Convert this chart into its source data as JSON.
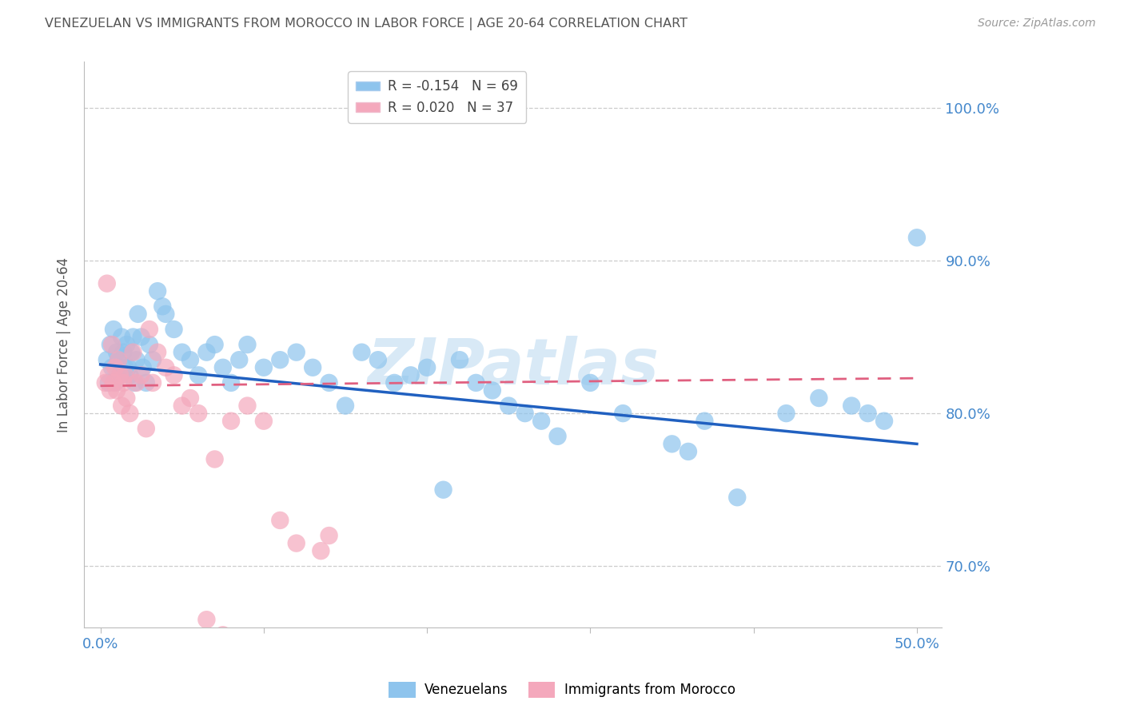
{
  "title": "VENEZUELAN VS IMMIGRANTS FROM MOROCCO IN LABOR FORCE | AGE 20-64 CORRELATION CHART",
  "source": "Source: ZipAtlas.com",
  "ylabel": "In Labor Force | Age 20-64",
  "xlim": [
    0.0,
    50.0
  ],
  "ylim": [
    66.0,
    103.0
  ],
  "blue_R": -0.154,
  "blue_N": 69,
  "pink_R": 0.02,
  "pink_N": 37,
  "blue_color": "#8ec4ed",
  "pink_color": "#f4a8bc",
  "blue_line_color": "#2060c0",
  "pink_line_color": "#e06080",
  "watermark": "ZIPatlas",
  "watermark_color": "#b8d8f0",
  "title_color": "#555555",
  "axis_color": "#4488cc",
  "legend_blue_label": "Venezuelans",
  "legend_pink_label": "Immigrants from Morocco",
  "blue_trend_x0": 0.0,
  "blue_trend_y0": 83.2,
  "blue_trend_x1": 50.0,
  "blue_trend_y1": 78.0,
  "pink_trend_x0": 0.0,
  "pink_trend_y0": 81.8,
  "pink_trend_x1": 50.0,
  "pink_trend_y1": 82.3,
  "venezuelan_x": [
    0.4,
    0.5,
    0.6,
    0.7,
    0.8,
    0.9,
    1.0,
    1.1,
    1.2,
    1.3,
    1.4,
    1.5,
    1.6,
    1.7,
    1.8,
    1.9,
    2.0,
    2.1,
    2.2,
    2.3,
    2.5,
    2.6,
    2.8,
    3.0,
    3.2,
    3.5,
    3.8,
    4.0,
    4.5,
    5.0,
    5.5,
    6.0,
    6.5,
    7.0,
    7.5,
    8.0,
    8.5,
    9.0,
    10.0,
    11.0,
    12.0,
    13.0,
    14.0,
    15.0,
    16.0,
    17.0,
    18.0,
    19.0,
    20.0,
    21.0,
    22.0,
    23.0,
    24.0,
    25.0,
    26.0,
    27.0,
    28.0,
    30.0,
    32.0,
    35.0,
    36.0,
    37.0,
    39.0,
    42.0,
    44.0,
    46.0,
    47.0,
    48.0,
    50.0
  ],
  "venezuelan_y": [
    83.5,
    82.0,
    84.5,
    83.0,
    85.5,
    82.0,
    84.0,
    83.5,
    82.5,
    85.0,
    84.0,
    83.0,
    84.5,
    83.0,
    82.5,
    84.0,
    85.0,
    82.0,
    83.5,
    86.5,
    85.0,
    83.0,
    82.0,
    84.5,
    83.5,
    88.0,
    87.0,
    86.5,
    85.5,
    84.0,
    83.5,
    82.5,
    84.0,
    84.5,
    83.0,
    82.0,
    83.5,
    84.5,
    83.0,
    83.5,
    84.0,
    83.0,
    82.0,
    80.5,
    84.0,
    83.5,
    82.0,
    82.5,
    83.0,
    75.0,
    83.5,
    82.0,
    81.5,
    80.5,
    80.0,
    79.5,
    78.5,
    82.0,
    80.0,
    78.0,
    77.5,
    79.5,
    74.5,
    80.0,
    81.0,
    80.5,
    80.0,
    79.5,
    91.5
  ],
  "morocco_x": [
    0.3,
    0.4,
    0.5,
    0.6,
    0.7,
    0.8,
    0.9,
    1.0,
    1.1,
    1.2,
    1.3,
    1.4,
    1.5,
    1.6,
    1.8,
    2.0,
    2.2,
    2.5,
    3.0,
    3.5,
    4.0,
    4.5,
    5.0,
    6.0,
    7.0,
    8.0,
    9.0,
    10.0,
    11.0,
    12.0,
    13.5,
    14.0,
    5.5,
    2.8,
    3.2,
    6.5,
    7.5
  ],
  "morocco_y": [
    82.0,
    88.5,
    82.5,
    81.5,
    84.5,
    82.0,
    83.0,
    81.5,
    83.5,
    82.5,
    80.5,
    82.0,
    82.5,
    81.0,
    80.0,
    84.0,
    82.0,
    82.5,
    85.5,
    84.0,
    83.0,
    82.5,
    80.5,
    80.0,
    77.0,
    79.5,
    80.5,
    79.5,
    73.0,
    71.5,
    71.0,
    72.0,
    81.0,
    79.0,
    82.0,
    66.5,
    65.5
  ]
}
